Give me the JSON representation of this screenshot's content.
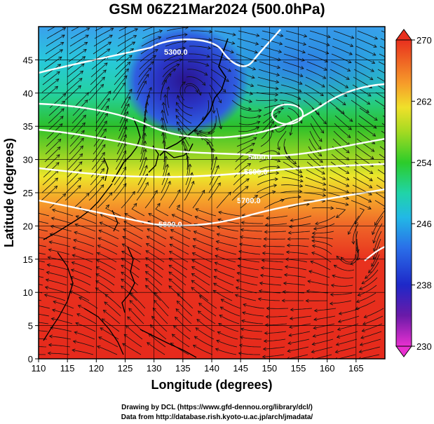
{
  "title": "GSM 06Z21Mar2024 (500.0hPa)",
  "x_axis": {
    "label": "Longitude (degrees)",
    "range": [
      110,
      170
    ],
    "ticks": [
      "110",
      "115",
      "120",
      "125",
      "130",
      "135",
      "140",
      "145",
      "150",
      "155",
      "160",
      "165"
    ]
  },
  "y_axis": {
    "label": "Latitude  (degrees)",
    "range": [
      0,
      50
    ],
    "ticks": [
      "0",
      "5",
      "10",
      "15",
      "20",
      "25",
      "30",
      "35",
      "40",
      "45"
    ]
  },
  "colorbar": {
    "ticks": [
      "230",
      "238",
      "246",
      "254",
      "262",
      "270"
    ],
    "range": [
      230,
      270
    ]
  },
  "contour_labels": [
    "5300.0",
    "5400.0",
    "5600.0",
    "5700.0",
    "5800.0"
  ],
  "credits": {
    "line1": "Drawing by DCL (https://www.gfd-dennou.org/library/dcl/)",
    "line2": "Data from http://database.rish.kyoto-u.ac.jp/arch/jmadata/"
  },
  "colors": {
    "tropical_red": "#e8321e",
    "midlat_green": "#2cc02a",
    "polar_blue": "#2a46d6",
    "low_center": "#2a1490"
  }
}
